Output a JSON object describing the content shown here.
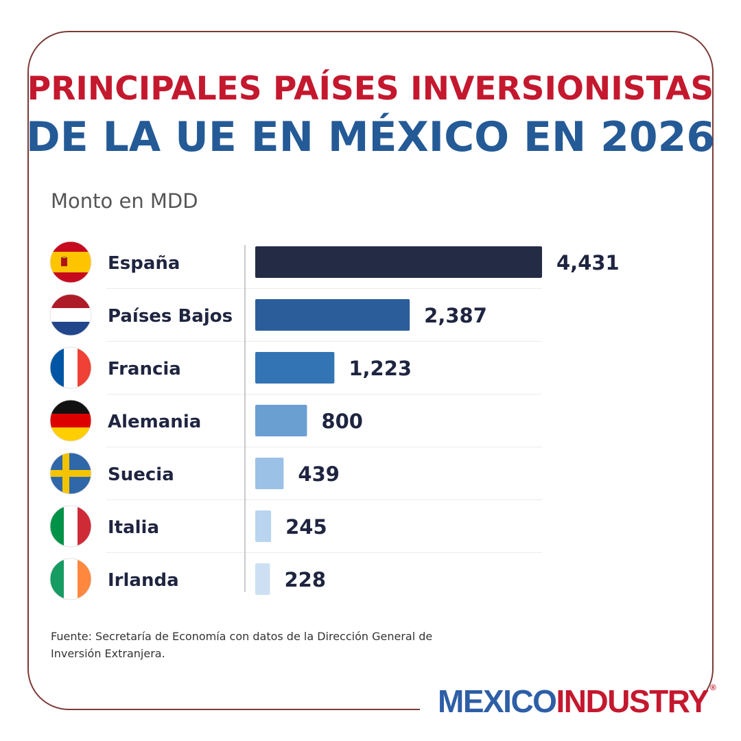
{
  "colors": {
    "title_line1": "#c4182e",
    "title_line2": "#245a96",
    "logo_primary": "#2e5ea6",
    "logo_secondary": "#c4182e",
    "bar_colors": [
      "#242b45",
      "#2c5d9b",
      "#3374b5",
      "#6a9fd2",
      "#9cc1e6",
      "#b8d4ee",
      "#cde0f3"
    ]
  },
  "title_line1": "PRINCIPALES PAÍSES INVERSIONISTAS",
  "title_line2": "DE LA UE EN MÉXICO EN 2026",
  "chart_data": {
    "type": "bar",
    "orientation": "horizontal",
    "subtitle": "Monto en MDD",
    "categories": [
      "España",
      "Países Bajos",
      "Francia",
      "Alemania",
      "Suecia",
      "Italia",
      "Irlanda"
    ],
    "values": [
      4431,
      2387,
      1223,
      800,
      439,
      245,
      228
    ],
    "value_labels": [
      "4,431",
      "2,387",
      "1,223",
      "800",
      "439",
      "245",
      "228"
    ],
    "flag_icons": [
      "flag-spain-icon",
      "flag-netherlands-icon",
      "flag-france-icon",
      "flag-germany-icon",
      "flag-sweden-icon",
      "flag-italy-icon",
      "flag-ireland-icon"
    ],
    "xlim": [
      0,
      4431
    ],
    "grid": false,
    "legend": "none"
  },
  "source_text": "Fuente: Secretaría de Economía con datos de la Dirección General de Inversión Extranjera.",
  "logo": {
    "word1": "MEXICO",
    "word2": "INDUSTRY",
    "mark": "®"
  }
}
